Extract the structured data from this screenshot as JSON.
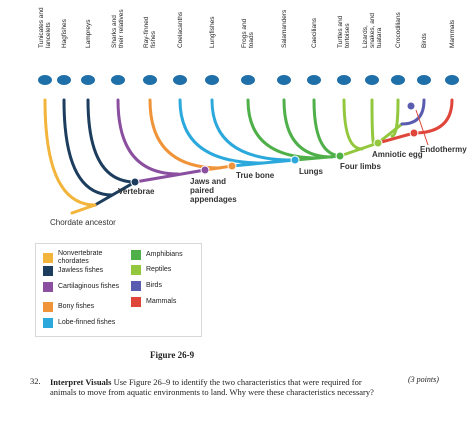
{
  "taxa": [
    "Tunicates and lancelets",
    "Hagfishes",
    "Lampreys",
    "Sharks and their relatives",
    "Ray-finned fishes",
    "Coelacanths",
    "Lungfishes",
    "Frogs and toads",
    "Salamanders",
    "Caecilians",
    "Turtles and tortoises",
    "Lizards, snakes, and tuatara",
    "Crocodilians",
    "Birds",
    "Mammals"
  ],
  "traits": [
    "Vertebrae",
    "Jaws and paired appendages",
    "True bone",
    "Lungs",
    "Four limbs",
    "Amniotic egg",
    "Endothermy"
  ],
  "root_label": "Chordate ancestor",
  "legend": [
    {
      "label": "Nonvertebrate chordates",
      "color": "#f2b43a"
    },
    {
      "label": "Jawless fishes",
      "color": "#1d3d5e"
    },
    {
      "label": "Cartilaginous fishes",
      "color": "#8b4fa0"
    },
    {
      "label": "Bony fishes",
      "color": "#f0943a"
    },
    {
      "label": "Lobe-finned fishes",
      "color": "#2ba8dc"
    },
    {
      "label": "Amphibians",
      "color": "#4fb04a"
    },
    {
      "label": "Reptiles",
      "color": "#93c83e"
    },
    {
      "label": "Birds",
      "color": "#5a5cb0"
    },
    {
      "label": "Mammals",
      "color": "#e0453a"
    }
  ],
  "caption": "Figure 26-9",
  "question": {
    "number": "32.",
    "lead": "Interpret Visuals",
    "text": "Use Figure 26–9 to identify the two characteristics that were required for animals to move from aquatic environments to land. Why were these characteristics necessary?",
    "points": "(3 points)"
  }
}
